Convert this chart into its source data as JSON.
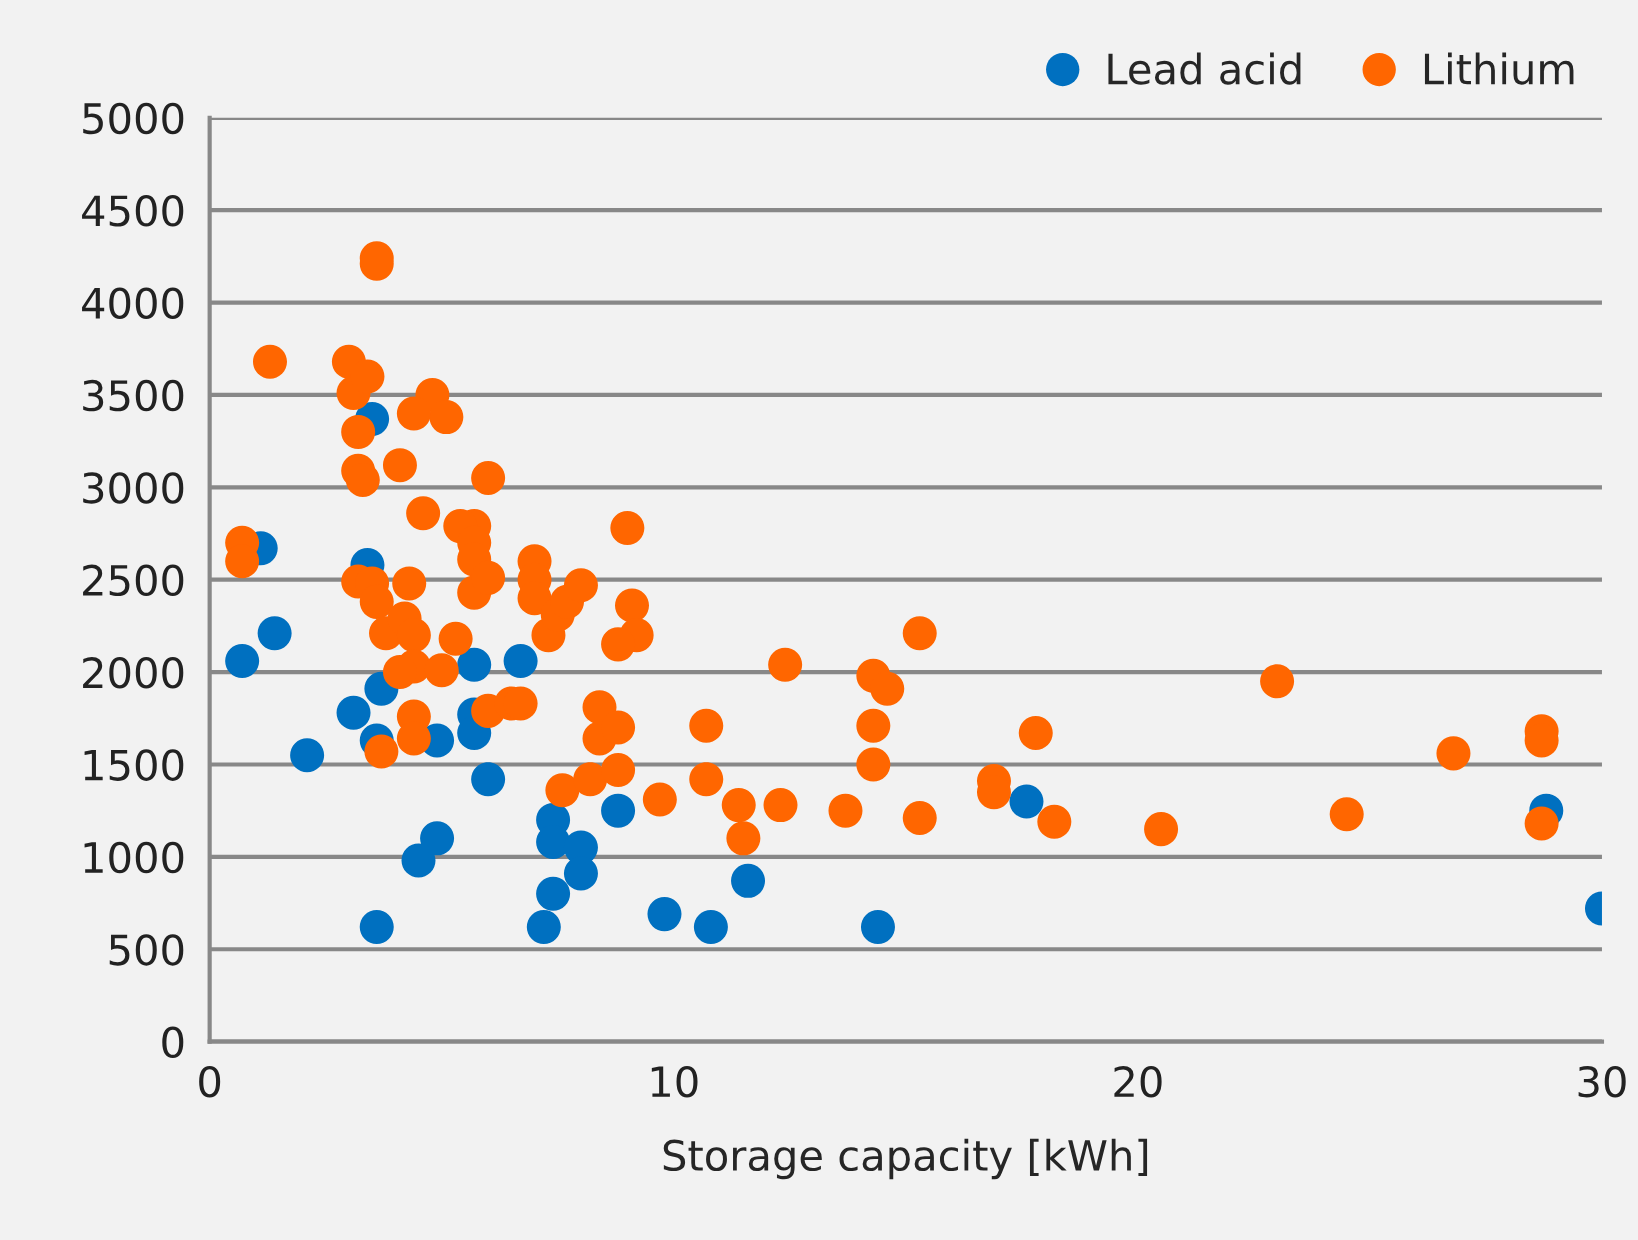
{
  "chart_data": {
    "type": "scatter",
    "xlabel": "Storage capacity [kWh]",
    "xlim": [
      0,
      30
    ],
    "xticks": [
      0,
      10,
      20,
      30
    ],
    "ylim": [
      0,
      5000
    ],
    "yticks": [
      0,
      500,
      1000,
      1500,
      2000,
      2500,
      3000,
      3500,
      4000,
      4500,
      5000
    ],
    "grid": "y",
    "legend": "top right",
    "marker": "circle",
    "series": [
      {
        "name": "Lead acid",
        "color": "#0070c0",
        "x": [
          0.7,
          1.4,
          2.1,
          1.1,
          3.1,
          3.5,
          3.4,
          3.6,
          3.7,
          3.6,
          4.9,
          5.7,
          6.7,
          5.7,
          5.7,
          6.0,
          4.9,
          4.5,
          7.4,
          7.4,
          8.0,
          8.0,
          7.4,
          7.2,
          8.8,
          9.8,
          10.8,
          11.6,
          14.4,
          17.6,
          28.8,
          30.0
        ],
        "values": [
          2060,
          2210,
          1550,
          2670,
          1780,
          3370,
          2580,
          620,
          1910,
          1630,
          1630,
          2040,
          2060,
          1770,
          1670,
          1420,
          1100,
          980,
          1200,
          1080,
          1050,
          910,
          800,
          620,
          1250,
          690,
          620,
          870,
          620,
          1300,
          1250,
          720
        ]
      },
      {
        "name": "Lithium",
        "color": "#ff6600",
        "x": [
          0.7,
          0.7,
          1.3,
          3.0,
          3.1,
          3.4,
          3.2,
          3.2,
          3.3,
          3.6,
          3.6,
          4.8,
          5.1,
          4.4,
          4.1,
          4.6,
          6.0,
          5.7,
          5.4,
          5.7,
          5.7,
          5.7,
          6.0,
          9.0,
          9.1,
          9.2,
          8.8,
          3.2,
          3.5,
          3.6,
          3.8,
          4.2,
          4.3,
          4.4,
          4.4,
          4.1,
          5.0,
          5.3,
          3.7,
          4.4,
          4.4,
          6.0,
          6.5,
          6.7,
          7.0,
          7.0,
          7.0,
          7.3,
          7.5,
          7.7,
          8.0,
          7.6,
          8.4,
          8.4,
          8.2,
          8.8,
          8.8,
          9.7,
          10.7,
          10.7,
          11.4,
          11.5,
          12.3,
          12.4,
          13.7,
          14.3,
          14.3,
          14.3,
          14.6,
          15.3,
          15.3,
          16.9,
          16.9,
          17.8,
          18.2,
          20.5,
          23.0,
          24.5,
          26.8,
          28.7,
          28.7,
          28.7
        ],
        "values": [
          2700,
          2600,
          3680,
          3680,
          3510,
          3600,
          3300,
          3090,
          3040,
          4240,
          4210,
          3500,
          3380,
          3400,
          3120,
          2860,
          3050,
          2790,
          2790,
          2700,
          2610,
          2430,
          2510,
          2780,
          2360,
          2200,
          2150,
          2490,
          2480,
          2380,
          2210,
          2290,
          2480,
          2200,
          2030,
          2000,
          2010,
          2180,
          1570,
          1760,
          1640,
          1790,
          1830,
          1830,
          2600,
          2500,
          2400,
          2200,
          2310,
          2380,
          2470,
          1360,
          1640,
          1810,
          1420,
          1470,
          1700,
          1310,
          1710,
          1420,
          1280,
          1100,
          1280,
          2040,
          1250,
          1980,
          1710,
          1500,
          1910,
          1210,
          2210,
          1410,
          1350,
          1670,
          1190,
          1150,
          1950,
          1230,
          1560,
          1680,
          1630,
          1180
        ]
      }
    ]
  }
}
